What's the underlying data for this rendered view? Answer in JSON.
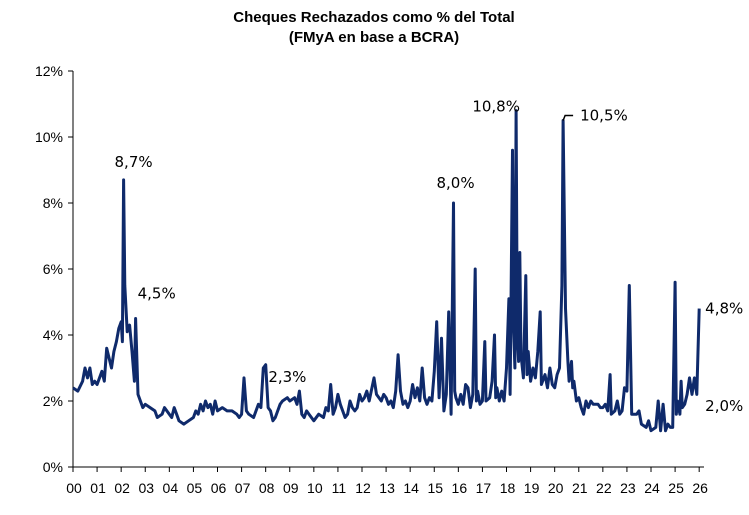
{
  "chart_data": {
    "type": "line",
    "title": "Cheques Rechazados como % del Total",
    "subtitle": "(FMyA en base a BCRA)",
    "xlabel": "",
    "ylabel": "",
    "ylim": [
      0,
      12
    ],
    "yticks": [
      {
        "value": 0,
        "label": "0%"
      },
      {
        "value": 2,
        "label": "2%"
      },
      {
        "value": 4,
        "label": "4%"
      },
      {
        "value": 6,
        "label": "6%"
      },
      {
        "value": 8,
        "label": "8%"
      },
      {
        "value": 10,
        "label": "10%"
      },
      {
        "value": 12,
        "label": "12%"
      }
    ],
    "xlim": [
      2000,
      2026.2
    ],
    "xticks": [
      {
        "value": 2000,
        "label": "00"
      },
      {
        "value": 2001,
        "label": "01"
      },
      {
        "value": 2002,
        "label": "02"
      },
      {
        "value": 2003,
        "label": "03"
      },
      {
        "value": 2004,
        "label": "04"
      },
      {
        "value": 2005,
        "label": "05"
      },
      {
        "value": 2006,
        "label": "06"
      },
      {
        "value": 2007,
        "label": "07"
      },
      {
        "value": 2008,
        "label": "08"
      },
      {
        "value": 2009,
        "label": "09"
      },
      {
        "value": 2010,
        "label": "10"
      },
      {
        "value": 2011,
        "label": "11"
      },
      {
        "value": 2012,
        "label": "12"
      },
      {
        "value": 2013,
        "label": "13"
      },
      {
        "value": 2014,
        "label": "14"
      },
      {
        "value": 2015,
        "label": "15"
      },
      {
        "value": 2016,
        "label": "16"
      },
      {
        "value": 2017,
        "label": "17"
      },
      {
        "value": 2018,
        "label": "18"
      },
      {
        "value": 2019,
        "label": "19"
      },
      {
        "value": 2020,
        "label": "20"
      },
      {
        "value": 2021,
        "label": "21"
      },
      {
        "value": 2022,
        "label": "22"
      },
      {
        "value": 2023,
        "label": "23"
      },
      {
        "value": 2024,
        "label": "24"
      },
      {
        "value": 2025,
        "label": "25"
      },
      {
        "value": 2026,
        "label": "26"
      }
    ],
    "grid": false,
    "legend": "none",
    "series": [
      {
        "name": "Cheques Rechazados como % del Total",
        "color": "#0f2a6b",
        "points": [
          [
            2000.0,
            2.4
          ],
          [
            2000.2,
            2.3
          ],
          [
            2000.4,
            2.6
          ],
          [
            2000.5,
            3.0
          ],
          [
            2000.6,
            2.7
          ],
          [
            2000.7,
            3.0
          ],
          [
            2000.8,
            2.5
          ],
          [
            2000.9,
            2.6
          ],
          [
            2001.0,
            2.5
          ],
          [
            2001.2,
            2.9
          ],
          [
            2001.3,
            2.6
          ],
          [
            2001.4,
            3.6
          ],
          [
            2001.5,
            3.3
          ],
          [
            2001.6,
            3.0
          ],
          [
            2001.7,
            3.5
          ],
          [
            2001.8,
            3.8
          ],
          [
            2001.9,
            4.2
          ],
          [
            2002.0,
            4.4
          ],
          [
            2002.05,
            3.8
          ],
          [
            2002.1,
            8.7
          ],
          [
            2002.15,
            5.5
          ],
          [
            2002.25,
            4.1
          ],
          [
            2002.35,
            4.3
          ],
          [
            2002.45,
            3.5
          ],
          [
            2002.55,
            2.6
          ],
          [
            2002.6,
            4.5
          ],
          [
            2002.7,
            2.2
          ],
          [
            2002.8,
            2.0
          ],
          [
            2002.9,
            1.8
          ],
          [
            2003.0,
            1.9
          ],
          [
            2003.2,
            1.8
          ],
          [
            2003.4,
            1.7
          ],
          [
            2003.5,
            1.5
          ],
          [
            2003.7,
            1.6
          ],
          [
            2003.8,
            1.8
          ],
          [
            2004.0,
            1.6
          ],
          [
            2004.1,
            1.5
          ],
          [
            2004.2,
            1.8
          ],
          [
            2004.3,
            1.6
          ],
          [
            2004.4,
            1.4
          ],
          [
            2004.6,
            1.3
          ],
          [
            2004.8,
            1.4
          ],
          [
            2005.0,
            1.5
          ],
          [
            2005.1,
            1.7
          ],
          [
            2005.2,
            1.6
          ],
          [
            2005.3,
            1.9
          ],
          [
            2005.4,
            1.7
          ],
          [
            2005.5,
            2.0
          ],
          [
            2005.6,
            1.8
          ],
          [
            2005.7,
            1.9
          ],
          [
            2005.8,
            1.6
          ],
          [
            2005.9,
            2.0
          ],
          [
            2006.0,
            1.7
          ],
          [
            2006.2,
            1.8
          ],
          [
            2006.4,
            1.7
          ],
          [
            2006.6,
            1.7
          ],
          [
            2006.8,
            1.6
          ],
          [
            2006.9,
            1.5
          ],
          [
            2007.0,
            1.6
          ],
          [
            2007.1,
            2.7
          ],
          [
            2007.2,
            1.7
          ],
          [
            2007.3,
            1.6
          ],
          [
            2007.5,
            1.5
          ],
          [
            2007.6,
            1.7
          ],
          [
            2007.7,
            1.9
          ],
          [
            2007.8,
            1.8
          ],
          [
            2007.9,
            3.0
          ],
          [
            2008.0,
            3.1
          ],
          [
            2008.1,
            1.8
          ],
          [
            2008.2,
            1.7
          ],
          [
            2008.3,
            1.4
          ],
          [
            2008.4,
            1.5
          ],
          [
            2008.5,
            1.7
          ],
          [
            2008.6,
            1.9
          ],
          [
            2008.7,
            2.0
          ],
          [
            2008.9,
            2.1
          ],
          [
            2009.0,
            2.0
          ],
          [
            2009.2,
            2.1
          ],
          [
            2009.3,
            1.9
          ],
          [
            2009.4,
            2.3
          ],
          [
            2009.5,
            1.6
          ],
          [
            2009.6,
            1.5
          ],
          [
            2009.7,
            1.7
          ],
          [
            2009.8,
            1.6
          ],
          [
            2009.9,
            1.5
          ],
          [
            2010.0,
            1.4
          ],
          [
            2010.2,
            1.6
          ],
          [
            2010.4,
            1.5
          ],
          [
            2010.5,
            1.8
          ],
          [
            2010.6,
            1.7
          ],
          [
            2010.7,
            2.5
          ],
          [
            2010.8,
            1.6
          ],
          [
            2010.9,
            1.8
          ],
          [
            2011.0,
            2.2
          ],
          [
            2011.1,
            1.9
          ],
          [
            2011.2,
            1.7
          ],
          [
            2011.3,
            1.5
          ],
          [
            2011.4,
            1.6
          ],
          [
            2011.5,
            2.0
          ],
          [
            2011.6,
            1.8
          ],
          [
            2011.7,
            1.7
          ],
          [
            2011.8,
            1.8
          ],
          [
            2011.9,
            2.2
          ],
          [
            2012.0,
            2.0
          ],
          [
            2012.1,
            2.1
          ],
          [
            2012.2,
            2.3
          ],
          [
            2012.3,
            2.0
          ],
          [
            2012.5,
            2.7
          ],
          [
            2012.6,
            2.2
          ],
          [
            2012.8,
            2.0
          ],
          [
            2012.9,
            2.2
          ],
          [
            2013.0,
            2.1
          ],
          [
            2013.1,
            1.9
          ],
          [
            2013.2,
            2.0
          ],
          [
            2013.3,
            1.8
          ],
          [
            2013.4,
            2.3
          ],
          [
            2013.5,
            3.4
          ],
          [
            2013.6,
            2.3
          ],
          [
            2013.7,
            1.9
          ],
          [
            2013.8,
            2.0
          ],
          [
            2013.9,
            1.8
          ],
          [
            2014.0,
            2.0
          ],
          [
            2014.1,
            2.5
          ],
          [
            2014.2,
            2.1
          ],
          [
            2014.3,
            2.4
          ],
          [
            2014.4,
            2.0
          ],
          [
            2014.5,
            3.0
          ],
          [
            2014.6,
            2.1
          ],
          [
            2014.7,
            1.9
          ],
          [
            2014.8,
            2.1
          ],
          [
            2014.9,
            2.0
          ],
          [
            2015.0,
            2.9
          ],
          [
            2015.1,
            4.4
          ],
          [
            2015.2,
            2.1
          ],
          [
            2015.3,
            3.9
          ],
          [
            2015.4,
            1.7
          ],
          [
            2015.5,
            2.2
          ],
          [
            2015.6,
            4.7
          ],
          [
            2015.7,
            1.6
          ],
          [
            2015.8,
            8.0
          ],
          [
            2015.85,
            2.3
          ],
          [
            2015.9,
            2.1
          ],
          [
            2016.0,
            1.9
          ],
          [
            2016.1,
            2.2
          ],
          [
            2016.2,
            1.9
          ],
          [
            2016.3,
            2.5
          ],
          [
            2016.4,
            2.4
          ],
          [
            2016.5,
            1.8
          ],
          [
            2016.6,
            2.2
          ],
          [
            2016.7,
            6.0
          ],
          [
            2016.75,
            2.0
          ],
          [
            2016.8,
            2.3
          ],
          [
            2016.9,
            1.9
          ],
          [
            2017.0,
            2.0
          ],
          [
            2017.1,
            3.8
          ],
          [
            2017.15,
            2.0
          ],
          [
            2017.3,
            2.1
          ],
          [
            2017.4,
            2.6
          ],
          [
            2017.5,
            4.0
          ],
          [
            2017.55,
            2.1
          ],
          [
            2017.6,
            2.4
          ],
          [
            2017.7,
            2.0
          ],
          [
            2017.8,
            2.3
          ],
          [
            2017.9,
            2.0
          ],
          [
            2018.0,
            3.0
          ],
          [
            2018.1,
            5.1
          ],
          [
            2018.15,
            2.2
          ],
          [
            2018.25,
            9.6
          ],
          [
            2018.3,
            4.1
          ],
          [
            2018.35,
            3.0
          ],
          [
            2018.4,
            10.8
          ],
          [
            2018.45,
            4.0
          ],
          [
            2018.5,
            3.2
          ],
          [
            2018.55,
            6.5
          ],
          [
            2018.6,
            3.4
          ],
          [
            2018.7,
            2.7
          ],
          [
            2018.8,
            5.8
          ],
          [
            2018.85,
            2.8
          ],
          [
            2018.9,
            3.5
          ],
          [
            2019.0,
            2.6
          ],
          [
            2019.1,
            3.0
          ],
          [
            2019.2,
            2.7
          ],
          [
            2019.3,
            3.5
          ],
          [
            2019.4,
            4.7
          ],
          [
            2019.45,
            2.5
          ],
          [
            2019.6,
            2.8
          ],
          [
            2019.7,
            2.4
          ],
          [
            2019.8,
            3.0
          ],
          [
            2019.9,
            2.5
          ],
          [
            2020.0,
            2.4
          ],
          [
            2020.1,
            2.8
          ],
          [
            2020.2,
            3.0
          ],
          [
            2020.3,
            5.5
          ],
          [
            2020.35,
            10.5
          ],
          [
            2020.45,
            4.8
          ],
          [
            2020.55,
            3.2
          ],
          [
            2020.6,
            2.6
          ],
          [
            2020.7,
            3.2
          ],
          [
            2020.75,
            2.4
          ],
          [
            2020.8,
            2.6
          ],
          [
            2020.9,
            2.0
          ],
          [
            2021.0,
            2.1
          ],
          [
            2021.1,
            1.8
          ],
          [
            2021.2,
            1.6
          ],
          [
            2021.3,
            2.0
          ],
          [
            2021.4,
            1.8
          ],
          [
            2021.5,
            2.0
          ],
          [
            2021.6,
            1.9
          ],
          [
            2021.8,
            1.9
          ],
          [
            2021.9,
            1.8
          ],
          [
            2022.0,
            1.8
          ],
          [
            2022.1,
            1.9
          ],
          [
            2022.2,
            1.7
          ],
          [
            2022.3,
            2.8
          ],
          [
            2022.35,
            1.6
          ],
          [
            2022.5,
            1.7
          ],
          [
            2022.6,
            2.0
          ],
          [
            2022.7,
            1.6
          ],
          [
            2022.8,
            1.7
          ],
          [
            2022.9,
            2.4
          ],
          [
            2023.0,
            2.3
          ],
          [
            2023.1,
            5.5
          ],
          [
            2023.2,
            1.6
          ],
          [
            2023.3,
            1.6
          ],
          [
            2023.4,
            1.6
          ],
          [
            2023.5,
            1.7
          ],
          [
            2023.6,
            1.3
          ],
          [
            2023.8,
            1.2
          ],
          [
            2023.9,
            1.4
          ],
          [
            2024.0,
            1.1
          ],
          [
            2024.2,
            1.2
          ],
          [
            2024.3,
            2.0
          ],
          [
            2024.4,
            1.1
          ],
          [
            2024.5,
            1.9
          ],
          [
            2024.6,
            1.1
          ],
          [
            2024.7,
            1.3
          ],
          [
            2024.8,
            1.2
          ],
          [
            2024.9,
            1.2
          ],
          [
            2025.0,
            5.6
          ],
          [
            2025.05,
            1.6
          ],
          [
            2025.1,
            2.0
          ],
          [
            2025.2,
            1.6
          ],
          [
            2025.25,
            2.6
          ],
          [
            2025.3,
            1.8
          ],
          [
            2025.4,
            1.9
          ],
          [
            2025.5,
            2.2
          ],
          [
            2025.6,
            2.7
          ],
          [
            2025.7,
            2.2
          ],
          [
            2025.8,
            2.7
          ],
          [
            2025.9,
            2.2
          ],
          [
            2026.0,
            4.8
          ]
        ]
      }
    ],
    "annotations": [
      {
        "label": "8,7%",
        "x": 2002.1,
        "y": 8.7
      },
      {
        "label": "4,5%",
        "x": 2002.6,
        "y": 4.5
      },
      {
        "label": "2,3%",
        "x": 2009.4,
        "y": 2.3
      },
      {
        "label": "8,0%",
        "x": 2015.8,
        "y": 8.0
      },
      {
        "label": "10,8%",
        "x": 2018.4,
        "y": 10.8
      },
      {
        "label": "10,5%",
        "x": 2020.35,
        "y": 10.5
      },
      {
        "label": "4,8%",
        "x": 2026.0,
        "y": 4.8
      },
      {
        "label": "2,0%",
        "x": 2026.0,
        "y": 2.0
      }
    ]
  }
}
